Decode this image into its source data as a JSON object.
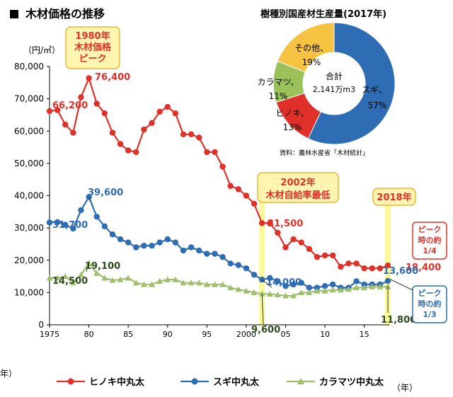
{
  "page": {
    "title": "木材価格の推移",
    "title_marker": "■"
  },
  "chart_data": [
    {
      "type": "line",
      "title": "木材価格の推移",
      "ylabel": "（円/㎥）",
      "xlabel": "（年）",
      "ylim": [
        0,
        80000
      ],
      "xlim": [
        1975,
        2018
      ],
      "grid": false,
      "legend": "bottom",
      "y_ticks": [
        0,
        10000,
        20000,
        30000,
        40000,
        50000,
        60000,
        70000,
        80000
      ],
      "y_tick_labels": [
        "0",
        "10,000",
        "20,000",
        "30,000",
        "40,000",
        "50,000",
        "60,000",
        "70,000",
        "80,000"
      ],
      "x_ticks": [
        1975,
        1980,
        1985,
        1990,
        1995,
        2000,
        2005,
        2010,
        2015
      ],
      "x_tick_labels": [
        "1975",
        "80",
        "85",
        "90",
        "95",
        "2000",
        "05",
        "10",
        "15"
      ],
      "x": [
        1975,
        1976,
        1977,
        1978,
        1979,
        1980,
        1981,
        1982,
        1983,
        1984,
        1985,
        1986,
        1987,
        1988,
        1989,
        1990,
        1991,
        1992,
        1993,
        1994,
        1995,
        1996,
        1997,
        1998,
        1999,
        2000,
        2001,
        2002,
        2003,
        2004,
        2005,
        2006,
        2007,
        2008,
        2009,
        2010,
        2011,
        2012,
        2013,
        2014,
        2015,
        2016,
        2017,
        2018
      ],
      "series": [
        {
          "name": "ヒノキ中丸太",
          "color": "#e0302a",
          "marker": "circle",
          "values": [
            66200,
            66500,
            62000,
            59500,
            70500,
            76400,
            68500,
            65500,
            59500,
            56000,
            54000,
            53500,
            60500,
            62500,
            66000,
            67500,
            65500,
            59000,
            59000,
            58000,
            53500,
            53500,
            49000,
            43000,
            42000,
            40000,
            37500,
            31500,
            31500,
            28500,
            24000,
            26500,
            25500,
            23500,
            21000,
            21500,
            21500,
            18000,
            19000,
            19000,
            17500,
            17500,
            17500,
            18400
          ]
        },
        {
          "name": "スギ中丸太",
          "color": "#2e6db4",
          "marker": "circle",
          "values": [
            31700,
            31800,
            31000,
            29800,
            35500,
            39600,
            33500,
            30500,
            28000,
            26500,
            25500,
            24000,
            24500,
            24500,
            25500,
            26500,
            25500,
            23000,
            24000,
            23000,
            22000,
            22000,
            21000,
            19000,
            18500,
            17500,
            15500,
            14000,
            14500,
            13500,
            12000,
            12500,
            13000,
            11500,
            11500,
            12000,
            12500,
            11500,
            11500,
            13500,
            12500,
            12500,
            12500,
            13600
          ]
        },
        {
          "name": "カラマツ中丸太",
          "color": "#9fbf6e",
          "marker": "triangle",
          "values": [
            14500,
            14500,
            15000,
            13000,
            15500,
            19100,
            16000,
            14500,
            13800,
            14000,
            14500,
            13000,
            12500,
            12500,
            13500,
            14000,
            14000,
            13000,
            13000,
            13000,
            12500,
            12500,
            12500,
            11500,
            11000,
            10500,
            10000,
            9600,
            9500,
            9300,
            9000,
            9000,
            10000,
            10000,
            10500,
            10500,
            10800,
            10800,
            11000,
            11500,
            11500,
            11800,
            11800,
            11800
          ]
        }
      ],
      "annotations": {
        "hinoki_1975": "66,200",
        "hinoki_1980": "76,400",
        "hinoki_2002": "31,500",
        "hinoki_2018": "18,400",
        "sugi_1975": "31,700",
        "sugi_1980": "39,600",
        "sugi_2002": "14,000",
        "sugi_2018": "13,600",
        "kara_1975": "14,500",
        "kara_1980": "19,100",
        "kara_2002": "9,600",
        "kara_2018": "11,800"
      },
      "callouts": {
        "peak_1980": "1980年\n木材価格\nピーク",
        "low_2002": "2002年\n木材自給率最低",
        "year_2018": "2018年",
        "hinoki_ratio": "ピーク\n時の約\n1/4",
        "sugi_ratio": "ピーク\n時の約\n1/3"
      },
      "highlight_years": [
        2002,
        2018
      ],
      "y_axis_side_text": "年）"
    },
    {
      "type": "pie",
      "title": "樹種別国産材生産量(2017年)",
      "center_label": "合計",
      "center_value": "2,141万m3",
      "source": "資料：農林水産省「木材統計」",
      "slices": [
        {
          "name": "スギ",
          "value": 57,
          "label": "57%",
          "color": "#2e6db4"
        },
        {
          "name": "ヒノキ",
          "value": 13,
          "label": "13%",
          "color": "#e0302a"
        },
        {
          "name": "カラマツ",
          "value": 11,
          "label": "11%",
          "color": "#9bc15a"
        },
        {
          "name": "その他",
          "value": 19,
          "label": "19%",
          "color": "#f5c242"
        }
      ]
    }
  ],
  "colors": {
    "callout_bg": "#fff4b0",
    "callout_border": "#e9b63a",
    "callout_text": "#e0302a",
    "highlight_band": "#fafa9a"
  }
}
